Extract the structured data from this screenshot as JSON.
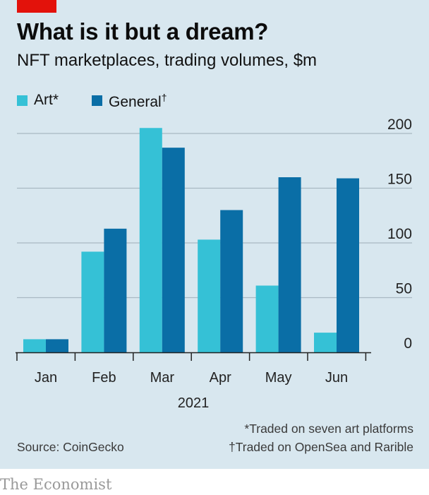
{
  "colors": {
    "background": "#d8e7ef",
    "accent_red": "#e3120b",
    "art": "#35c1d6",
    "general": "#0a6ea6",
    "gridline": "#a9b9c2",
    "axis": "#222222",
    "text": "#121212"
  },
  "header": {
    "title": "What is it but a dream?",
    "subtitle": "NFT marketplaces, trading volumes, $m"
  },
  "chart_data": {
    "type": "bar",
    "title": "What is it but a dream?",
    "subtitle": "NFT marketplaces, trading volumes, $m",
    "categories": [
      "Jan",
      "Feb",
      "Mar",
      "Apr",
      "May",
      "Jun"
    ],
    "period_label": "2021",
    "series": [
      {
        "name": "Art*",
        "label": "Art",
        "mark": "*",
        "color": "#35c1d6",
        "values": [
          12,
          92,
          205,
          103,
          61,
          18
        ]
      },
      {
        "name": "General†",
        "label": "General",
        "mark": "†",
        "color": "#0a6ea6",
        "values": [
          12,
          113,
          187,
          130,
          160,
          159
        ]
      }
    ],
    "ylim": [
      0,
      200
    ],
    "yticks": [
      0,
      50,
      100,
      150,
      200
    ],
    "y_axis_side": "right",
    "grid": true,
    "legend_position": "top-left",
    "xlabel": "",
    "ylabel": ""
  },
  "footer": {
    "note_art": "*Traded on seven art platforms",
    "note_general": "†Traded on OpenSea and Rarible",
    "source": "Source: CoinGecko",
    "brand": "The Economist"
  }
}
